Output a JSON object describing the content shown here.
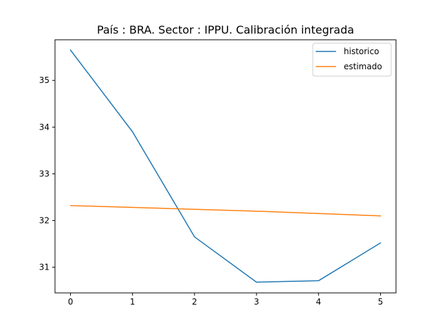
{
  "chart_data": {
    "type": "line",
    "title": "País : BRA. Sector : IPPU. Calibración integrada",
    "xlabel": "",
    "ylabel": "",
    "x": [
      0,
      1,
      2,
      3,
      4,
      5
    ],
    "x_ticks": [
      0,
      1,
      2,
      3,
      4,
      5
    ],
    "y_ticks": [
      31,
      32,
      33,
      34,
      35
    ],
    "xlim": [
      -0.25,
      5.25
    ],
    "ylim": [
      30.45,
      35.87
    ],
    "grid": false,
    "legend": {
      "position": "top-right"
    },
    "series": [
      {
        "name": "historico",
        "color": "#1f77b4",
        "values": [
          35.65,
          33.9,
          31.65,
          30.68,
          30.71,
          31.52
        ]
      },
      {
        "name": "estimado",
        "color": "#ff7f0e",
        "values": [
          32.32,
          32.28,
          32.24,
          32.2,
          32.15,
          32.1
        ]
      }
    ]
  }
}
